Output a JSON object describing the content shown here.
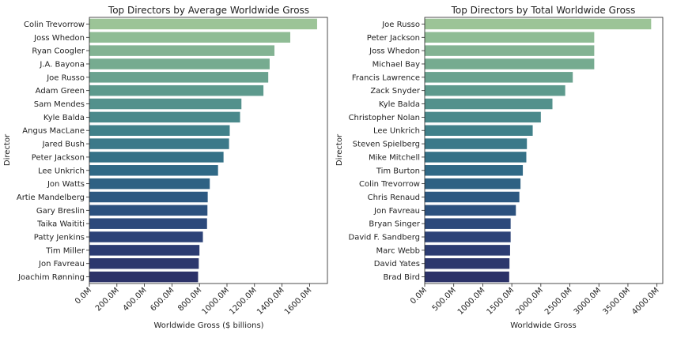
{
  "chart_data": [
    {
      "type": "bar",
      "orientation": "horizontal",
      "title": "Top Directors by Average Worldwide Gross",
      "xlabel": "Worldwide Gross ($ billions)",
      "ylabel": "Director",
      "xlim": [
        0,
        1730
      ],
      "xticks": [
        0,
        200,
        400,
        600,
        800,
        1000,
        1200,
        1400,
        1600
      ],
      "xtick_labels": [
        "0.0M",
        "200.0M",
        "400.0M",
        "600.0M",
        "800.0M",
        "1000.0M",
        "1200.0M",
        "1400.0M",
        "1600.0M"
      ],
      "grid": false,
      "palette": "crest",
      "categories": [
        "Colin Trevorrow",
        "Joss Whedon",
        "Ryan Coogler",
        "J.A. Bayona",
        "Joe Russo",
        "Adam Green",
        "Sam Mendes",
        "Kyle Balda",
        "Angus MacLane",
        "Jared Bush",
        "Peter Jackson",
        "Lee Unkrich",
        "Jon Watts",
        "Artie Mandelberg",
        "Gary Breslin",
        "Taika Waititi",
        "Patty Jenkins",
        "Tim Miller",
        "Jon Favreau",
        "Joachim Rønning"
      ],
      "values": [
        1655,
        1460,
        1345,
        1310,
        1300,
        1265,
        1105,
        1095,
        1020,
        1015,
        975,
        935,
        875,
        860,
        858,
        855,
        825,
        800,
        795,
        790
      ]
    },
    {
      "type": "bar",
      "orientation": "horizontal",
      "title": "Top Directors by Total Worldwide Gross",
      "xlabel": "Worldwide Gross",
      "ylabel": "Director",
      "xlim": [
        0,
        4100
      ],
      "xticks": [
        0,
        500,
        1000,
        1500,
        2000,
        2500,
        3000,
        3500,
        4000
      ],
      "xtick_labels": [
        "0.0M",
        "500.0M",
        "1000.0M",
        "1500.0M",
        "2000.0M",
        "2500.0M",
        "3000.0M",
        "3500.0M",
        "4000.0M"
      ],
      "grid": false,
      "palette": "crest",
      "categories": [
        "Joe Russo",
        "Peter Jackson",
        "Joss Whedon",
        "Michael Bay",
        "Francis Lawrence",
        "Zack Snyder",
        "Kyle Balda",
        "Christopher Nolan",
        "Lee Unkrich",
        "Steven Spielberg",
        "Mike Mitchell",
        "Tim Burton",
        "Colin Trevorrow",
        "Chris Renaud",
        "Jon Favreau",
        "Bryan Singer",
        "David F. Sandberg",
        "Marc Webb",
        "David Yates",
        "Brad Bird"
      ],
      "values": [
        3900,
        2920,
        2920,
        2920,
        2550,
        2420,
        2200,
        2000,
        1860,
        1760,
        1750,
        1690,
        1650,
        1630,
        1570,
        1480,
        1480,
        1470,
        1460,
        1455
      ]
    }
  ]
}
